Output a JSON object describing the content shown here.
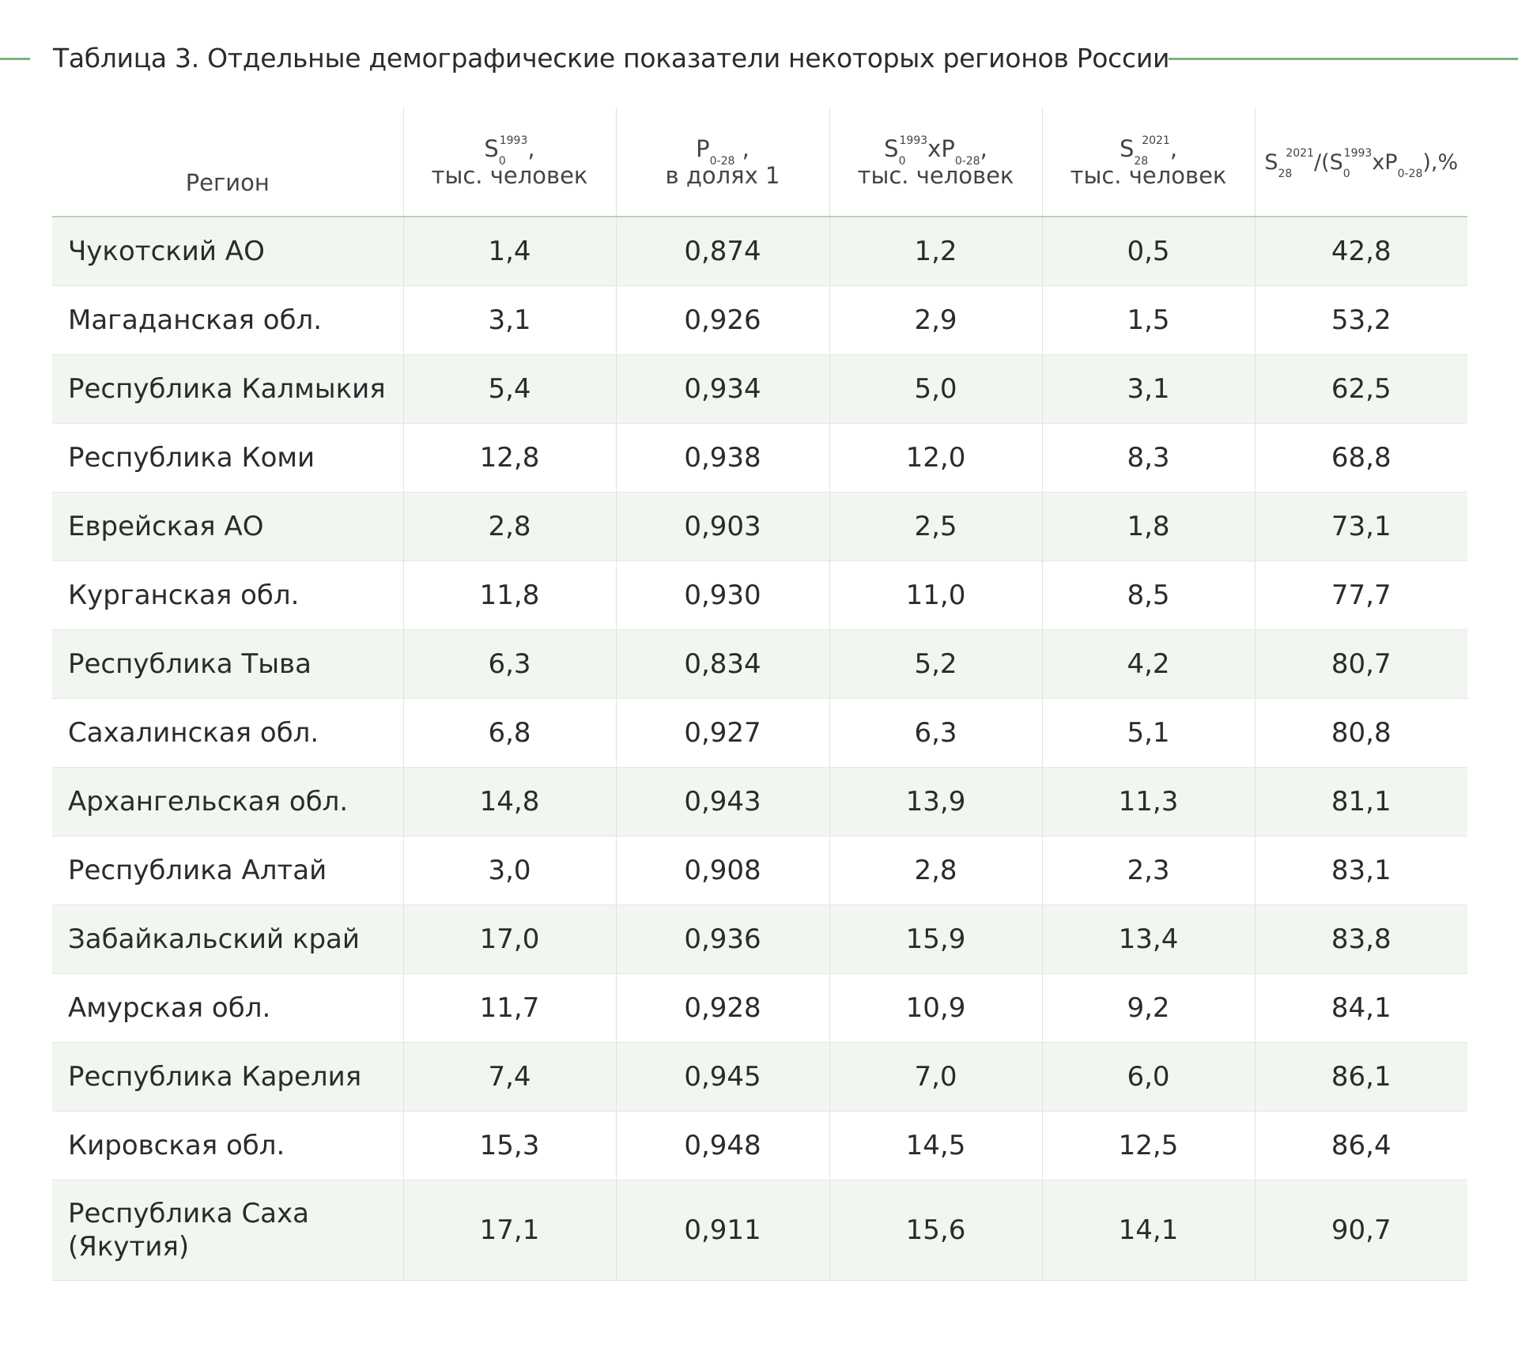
{
  "title": "Таблица 3. Отдельные демографические показатели некоторых регионов России",
  "table": {
    "headers": [
      {
        "label": "Регион"
      },
      {
        "base": "S",
        "sub": "0",
        "sup": "1993",
        "suffix": ",",
        "unit": "тыс. человек"
      },
      {
        "base": "P",
        "sub": "0-28",
        "suffix": " ,",
        "unit": "в долях 1"
      },
      {
        "f1": "S",
        "f1sub": "0",
        "f1sup": "1993",
        "f2": "xP",
        "f2sub": "0-28",
        "suffix": ",",
        "unit": "тыс. человек"
      },
      {
        "base": "S",
        "sub": "28",
        "sup": "2021",
        "suffix": ",",
        "unit": "тыс. человек"
      },
      {
        "a": "S",
        "asub": "28",
        "asup": "2021",
        "b": "/(S",
        "bsub": "0",
        "bsup": "1993",
        "c": "xP",
        "csub": "0-28",
        "d": "),%"
      }
    ],
    "rows": [
      [
        "Чукотский АО",
        "1,4",
        "0,874",
        "1,2",
        "0,5",
        "42,8"
      ],
      [
        "Магаданская обл.",
        "3,1",
        "0,926",
        "2,9",
        "1,5",
        "53,2"
      ],
      [
        "Республика Калмыкия",
        "5,4",
        "0,934",
        "5,0",
        "3,1",
        "62,5"
      ],
      [
        "Республика Коми",
        "12,8",
        "0,938",
        "12,0",
        "8,3",
        "68,8"
      ],
      [
        "Еврейская АО",
        "2,8",
        "0,903",
        "2,5",
        "1,8",
        "73,1"
      ],
      [
        "Курганская обл.",
        "11,8",
        "0,930",
        "11,0",
        "8,5",
        "77,7"
      ],
      [
        "Республика Тыва",
        "6,3",
        "0,834",
        "5,2",
        "4,2",
        "80,7"
      ],
      [
        "Сахалинская обл.",
        "6,8",
        "0,927",
        "6,3",
        "5,1",
        "80,8"
      ],
      [
        "Архангельская обл.",
        "14,8",
        "0,943",
        "13,9",
        "11,3",
        "81,1"
      ],
      [
        "Республика Алтай",
        "3,0",
        "0,908",
        "2,8",
        "2,3",
        "83,1"
      ],
      [
        "Забайкальский край",
        "17,0",
        "0,936",
        "15,9",
        "13,4",
        "83,8"
      ],
      [
        "Амурская обл.",
        "11,7",
        "0,928",
        "10,9",
        "9,2",
        "84,1"
      ],
      [
        "Республика Карелия",
        "7,4",
        "0,945",
        "7,0",
        "6,0",
        "86,1"
      ],
      [
        "Кировская обл.",
        "15,3",
        "0,948",
        "14,5",
        "12,5",
        "86,4"
      ],
      [
        "Республика Саха (Якутия)",
        "17,1",
        "0,911",
        "15,6",
        "14,1",
        "90,7"
      ]
    ]
  },
  "colors": {
    "accent_line": "#7fb07e",
    "stripe": "#f1f6f1",
    "header_rule": "#b9d1b9"
  }
}
